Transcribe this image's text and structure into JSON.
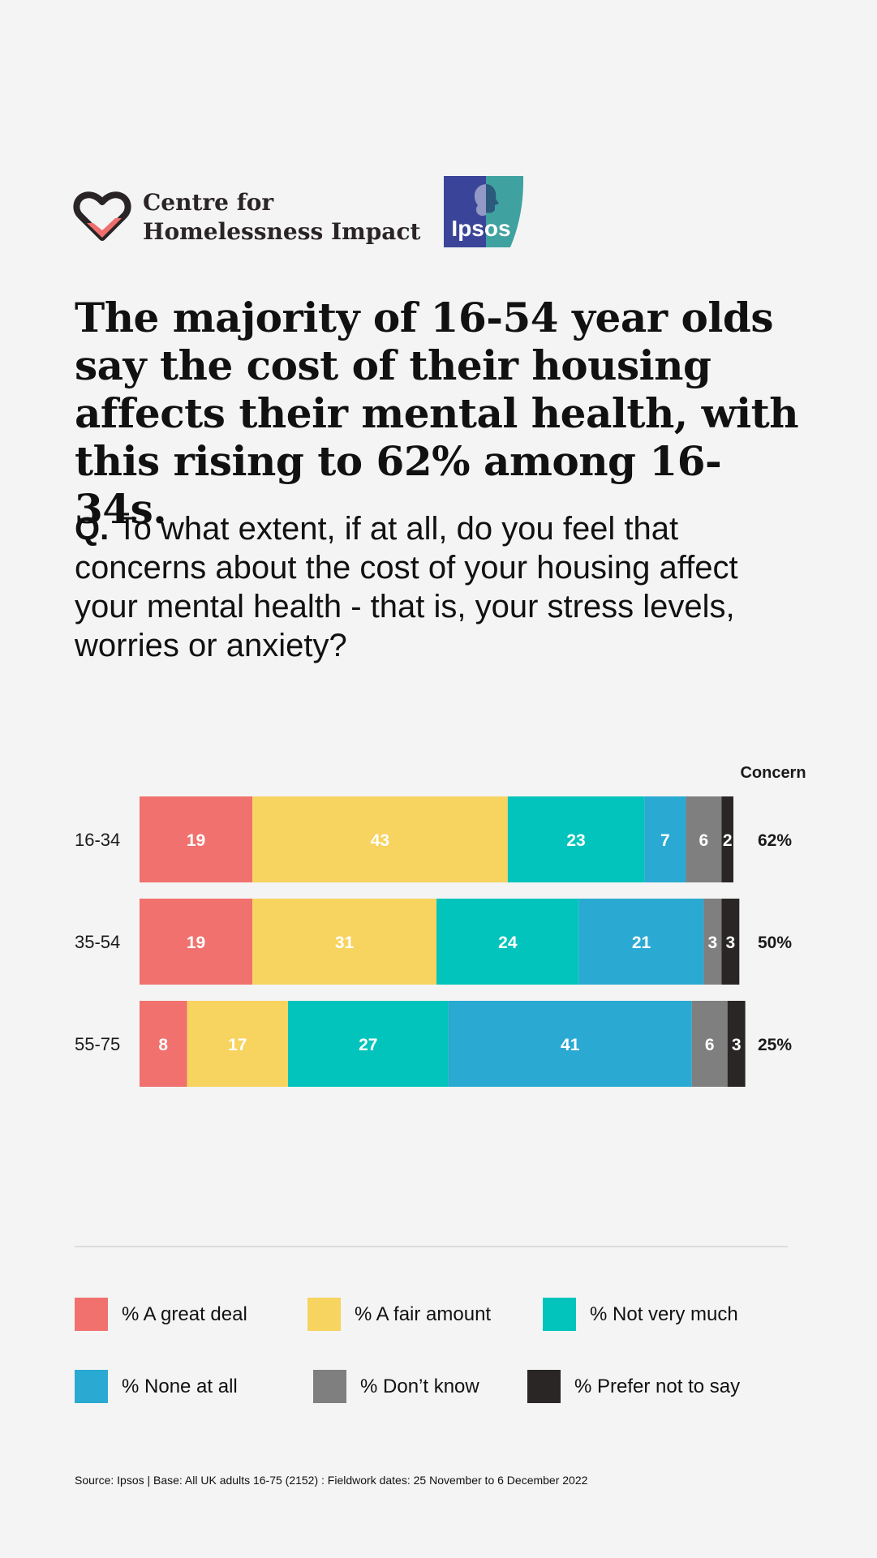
{
  "branding": {
    "chi_line1": "Centre for",
    "chi_line2": "Homelessness Impact",
    "ipsos": "Ipsos",
    "heart_color": "#2a2426",
    "check_color": "#ef6f6c",
    "ipsos_blue": "#3a4599",
    "ipsos_teal": "#3fa2a0"
  },
  "headline": "The majority of 16-54 year olds say the cost of their housing affects their mental health, with this rising to 62% among 16-34s.",
  "question": {
    "prefix": "Q.",
    "text": " To what extent, if at all, do you feel that concerns about the cost of your housing affect your mental health - that is, your stress levels, worries or anxiety?"
  },
  "chart_data": {
    "type": "bar",
    "orientation": "horizontal",
    "stacked": true,
    "categories": [
      "16-34",
      "35-54",
      "55-75"
    ],
    "series": [
      {
        "name": "% A great deal",
        "color": "#f0716d",
        "values": [
          19,
          19,
          8
        ]
      },
      {
        "name": "% A fair amount",
        "color": "#f7d35f",
        "values": [
          43,
          31,
          17
        ]
      },
      {
        "name": "% Not very much",
        "color": "#03c4bc",
        "values": [
          23,
          24,
          27
        ]
      },
      {
        "name": "% None at all",
        "color": "#2aa9d2",
        "values": [
          7,
          21,
          41
        ]
      },
      {
        "name": "% Don’t know",
        "color": "#7f7f7f",
        "values": [
          6,
          3,
          6
        ]
      },
      {
        "name": "% Prefer not to say",
        "color": "#2b2626",
        "values": [
          2,
          3,
          3
        ]
      }
    ],
    "concern_header": "Concern",
    "concern": [
      "62%",
      "50%",
      "25%"
    ],
    "xlim": [
      0,
      100
    ]
  },
  "legend_layout": [
    [
      "% A great deal",
      "% A fair amount",
      "% Not very much"
    ],
    [
      "% None at all",
      "% Don’t know",
      "% Prefer not to say"
    ]
  ],
  "source": "Source: Ipsos | Base: All UK adults 16-75 (2152) : Fieldwork dates: 25 November to 6 December 2022"
}
